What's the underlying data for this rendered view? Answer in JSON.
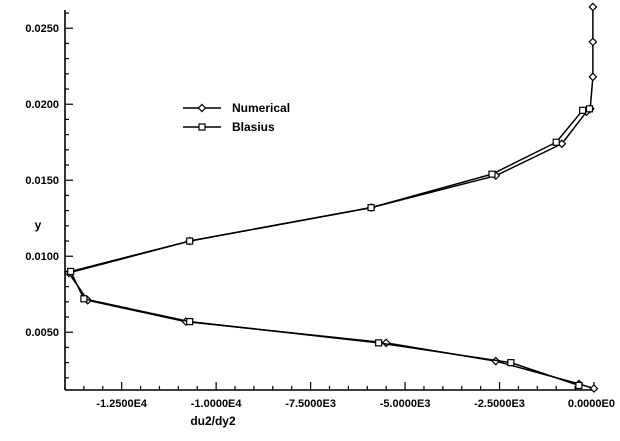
{
  "chart_data": {
    "type": "line",
    "title": "",
    "xlabel": "du2/dy2",
    "ylabel": "y",
    "xlim": [
      -14000,
      0
    ],
    "ylim": [
      0.0012,
      0.0262
    ],
    "x_tick_values": [
      -12500,
      -10000,
      -7500,
      -5000,
      -2500,
      0
    ],
    "x_tick_labels": [
      "-1.2500E4",
      "-1.0000E4",
      "-7.5000E3",
      "-5.0000E3",
      "-2.5000E3",
      "0.0000E0"
    ],
    "y_tick_values": [
      0.005,
      0.01,
      0.015,
      0.02,
      0.025
    ],
    "y_tick_labels": [
      "0.0050",
      "0.0100",
      "0.0150",
      "0.0200",
      "0.0250"
    ],
    "grid": false,
    "legend_position": "upper-left inside",
    "series": [
      {
        "name": "Numerical",
        "marker": "diamond",
        "x": [
          0,
          -400,
          -2600,
          -5500,
          -10800,
          -13400,
          -13900,
          -10700,
          -5900,
          -2600,
          -850,
          -200,
          -100,
          -30,
          -30,
          -30
        ],
        "y": [
          0.0013,
          0.0016,
          0.0031,
          0.0043,
          0.0057,
          0.0071,
          0.0089,
          0.011,
          0.0132,
          0.0153,
          0.0174,
          0.0195,
          0.0197,
          0.0218,
          0.0241,
          0.0264
        ]
      },
      {
        "name": "Blasius",
        "marker": "square",
        "x": [
          -400,
          -2200,
          -5700,
          -10700,
          -13500,
          -13850,
          -10700,
          -5900,
          -2700,
          -1000,
          -300,
          -120
        ],
        "y": [
          0.0015,
          0.003,
          0.0043,
          0.0057,
          0.0072,
          0.009,
          0.011,
          0.0132,
          0.0154,
          0.0175,
          0.0196,
          0.0197
        ]
      }
    ]
  }
}
